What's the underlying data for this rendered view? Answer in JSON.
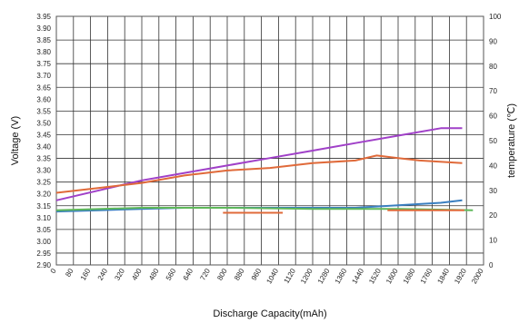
{
  "chart_data": {
    "type": "line",
    "title": "",
    "xlabel": "Discharge Capacity(mAh)",
    "ylabel": "Voltage (V)",
    "y2label": "temperature (℃)",
    "xlim": [
      0,
      2000
    ],
    "ylim": [
      2.9,
      3.95
    ],
    "y2lim": [
      0,
      100
    ],
    "x_ticks": [
      0,
      80,
      160,
      240,
      320,
      400,
      480,
      560,
      640,
      720,
      800,
      880,
      960,
      1040,
      1120,
      1200,
      1280,
      1360,
      1440,
      1520,
      1600,
      1680,
      1760,
      1840,
      1920,
      2000
    ],
    "y_ticks": [
      "2.90",
      "2.95",
      "3.00",
      "3.05",
      "3.10",
      "3.15",
      "3.20",
      "3.25",
      "3.30",
      "3.35",
      "3.40",
      "3.45",
      "3.50",
      "3.55",
      "3.60",
      "3.65",
      "3.70",
      "3.75",
      "3.80",
      "3.85",
      "3.90",
      "3.95"
    ],
    "y2_ticks": [
      0,
      10,
      20,
      30,
      40,
      50,
      60,
      70,
      80,
      90,
      100
    ],
    "grid": true,
    "series": [
      {
        "axis": "y2",
        "color": "#a040c8",
        "x": [
          0,
          200,
          400,
          600,
          800,
          1000,
          1200,
          1400,
          1600,
          1800,
          1900
        ],
        "values": [
          26,
          30,
          34,
          37,
          40,
          43,
          46,
          49,
          52,
          55,
          55
        ]
      },
      {
        "axis": "y2",
        "color": "#e06a3a",
        "x": [
          0,
          200,
          400,
          600,
          800,
          1000,
          1200,
          1400,
          1500,
          1600,
          1700,
          1900
        ],
        "values": [
          29,
          31,
          33,
          36,
          38,
          39,
          41,
          42,
          44,
          43,
          42,
          41
        ]
      },
      {
        "axis": "y2",
        "color": "#3a7fc0",
        "x": [
          0,
          200,
          400,
          600,
          800,
          1000,
          1200,
          1400,
          1600,
          1800,
          1900
        ],
        "values": [
          21.5,
          22,
          22.5,
          23,
          23,
          23,
          23,
          23,
          24,
          25,
          26
        ]
      },
      {
        "axis": "y2",
        "color": "#5fb85a",
        "x": [
          0,
          400,
          800,
          1200,
          1600,
          1950
        ],
        "values": [
          22,
          23,
          23,
          22.5,
          22.5,
          22
        ]
      },
      {
        "axis": "y2",
        "color": "#e06a3a",
        "x": [
          780,
          1060
        ],
        "values": [
          21,
          21
        ]
      },
      {
        "axis": "y2",
        "color": "#e06a3a",
        "x": [
          1550,
          1910
        ],
        "values": [
          22,
          22
        ]
      }
    ]
  }
}
